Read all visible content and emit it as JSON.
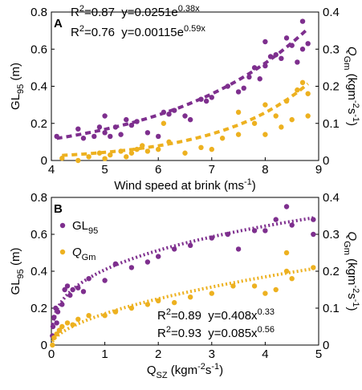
{
  "chart_data": [
    {
      "type": "scatter",
      "panel_label": "A",
      "fit_style": "dashed",
      "xlim": [
        4,
        9
      ],
      "xticks": [
        4,
        5,
        6,
        7,
        8,
        9
      ],
      "ylim": [
        0,
        0.8
      ],
      "yticks": [
        0,
        0.2,
        0.4,
        0.6,
        0.8
      ],
      "y2lim": [
        0,
        0.4
      ],
      "y2ticks": [
        0,
        0.1,
        0.2,
        0.3,
        0.4
      ],
      "xlabel": [
        {
          "text": "Wind speed at brink (ms"
        },
        {
          "text": "-1",
          "sup": true
        },
        {
          "text": ")"
        }
      ],
      "ylabel": [
        {
          "text": "GL"
        },
        {
          "text": "95",
          "sub": true
        },
        {
          "text": " (m)"
        }
      ],
      "y2label": [
        {
          "text": "Q",
          "italic": true
        },
        {
          "text": "Gm",
          "sub": true
        },
        {
          "text": " (kgm"
        },
        {
          "text": "-2",
          "sup": true
        },
        {
          "text": "s"
        },
        {
          "text": "-1",
          "sup": true
        },
        {
          "text": ")"
        }
      ],
      "series": [
        {
          "name": [
            {
              "text": "GL"
            },
            {
              "text": "95",
              "sub": true
            }
          ],
          "color": "#7E2F8E",
          "x": [
            4.1,
            4.5,
            4.6,
            4.8,
            4.9,
            5.0,
            5.0,
            5.1,
            5.2,
            5.3,
            5.4,
            5.5,
            5.6,
            5.8,
            6.0,
            6.1,
            6.2,
            6.3,
            6.5,
            6.6,
            6.8,
            6.9,
            7.0,
            7.3,
            7.5,
            7.6,
            7.7,
            7.8,
            7.9,
            8.0,
            8.0,
            8.1,
            8.2,
            8.3,
            8.4,
            8.5,
            8.6,
            8.7,
            8.7,
            8.8
          ],
          "values": [
            0.13,
            0.17,
            0.12,
            0.13,
            0.18,
            0.24,
            0.15,
            0.13,
            0.18,
            0.14,
            0.22,
            0.19,
            0.21,
            0.15,
            0.13,
            0.26,
            0.25,
            0.27,
            0.24,
            0.22,
            0.33,
            0.32,
            0.34,
            0.4,
            0.37,
            0.39,
            0.45,
            0.5,
            0.44,
            0.51,
            0.64,
            0.56,
            0.57,
            0.55,
            0.66,
            0.62,
            0.53,
            0.75,
            0.6,
            0.63
          ],
          "fit": {
            "model": "exp",
            "a": 0.0251,
            "b": 0.38
          },
          "fit_label": [
            {
              "text": "R"
            },
            {
              "text": "2",
              "sup": true
            },
            {
              "text": "=0.87  y=0.0251e"
            },
            {
              "text": "0.38x",
              "sup": true
            }
          ]
        },
        {
          "name": [
            {
              "text": "Q",
              "italic": true
            },
            {
              "text": "Gm",
              "sub": true
            }
          ],
          "color": "#EDB120",
          "axis": "y2",
          "x": [
            4.2,
            4.5,
            4.7,
            4.9,
            5.0,
            5.1,
            5.3,
            5.4,
            5.5,
            5.6,
            5.7,
            5.8,
            6.0,
            6.1,
            6.2,
            6.5,
            6.8,
            7.0,
            7.2,
            7.5,
            7.5,
            7.8,
            8.0,
            8.0,
            8.2,
            8.3,
            8.4,
            8.5,
            8.6,
            8.7,
            8.8,
            8.8
          ],
          "values": [
            0.006,
            0.0,
            0.01,
            0.02,
            0.005,
            0.015,
            0.025,
            0.01,
            0.02,
            0.03,
            0.04,
            0.025,
            0.03,
            0.1,
            0.05,
            0.02,
            0.035,
            0.03,
            0.06,
            0.07,
            0.13,
            0.1,
            0.15,
            0.07,
            0.12,
            0.09,
            0.16,
            0.11,
            0.19,
            0.21,
            0.18,
            0.12
          ],
          "fit": {
            "model": "exp",
            "a": 0.00115,
            "b": 0.59
          },
          "fit_label": [
            {
              "text": "R"
            },
            {
              "text": "2",
              "sup": true
            },
            {
              "text": "=0.76  y=0.00115e"
            },
            {
              "text": "0.59x",
              "sup": true
            }
          ]
        }
      ]
    },
    {
      "type": "scatter",
      "panel_label": "B",
      "fit_style": "dotted",
      "legend": "upper left",
      "xlim": [
        0,
        5
      ],
      "xticks": [
        0,
        1,
        2,
        3,
        4,
        5
      ],
      "ylim": [
        0,
        0.8
      ],
      "yticks": [
        0,
        0.2,
        0.4,
        0.6,
        0.8
      ],
      "y2lim": [
        0,
        0.4
      ],
      "y2ticks": [
        0,
        0.1,
        0.2,
        0.3,
        0.4
      ],
      "xlabel": [
        {
          "text": "Q"
        },
        {
          "text": "SZ",
          "sub": true
        },
        {
          "text": " (kgm"
        },
        {
          "text": "-2",
          "sup": true
        },
        {
          "text": "s"
        },
        {
          "text": "-1",
          "sup": true
        },
        {
          "text": ")"
        }
      ],
      "ylabel": [
        {
          "text": "GL"
        },
        {
          "text": "95",
          "sub": true
        },
        {
          "text": " (m)"
        }
      ],
      "y2label": [
        {
          "text": "Q",
          "italic": true
        },
        {
          "text": "Gm",
          "sub": true
        },
        {
          "text": " (kgm"
        },
        {
          "text": "-2",
          "sup": true
        },
        {
          "text": "s"
        },
        {
          "text": "-1",
          "sup": true
        },
        {
          "text": ")"
        }
      ],
      "series": [
        {
          "name": [
            {
              "text": "GL"
            },
            {
              "text": "95",
              "sub": true
            }
          ],
          "color": "#7E2F8E",
          "x": [
            0.02,
            0.03,
            0.05,
            0.08,
            0.1,
            0.12,
            0.15,
            0.2,
            0.25,
            0.3,
            0.35,
            0.4,
            0.5,
            0.6,
            0.7,
            1.0,
            1.2,
            1.5,
            1.8,
            2.0,
            2.3,
            2.6,
            3.0,
            3.3,
            3.5,
            3.8,
            4.0,
            4.2,
            4.4,
            4.5,
            4.9,
            4.9
          ],
          "values": [
            0.05,
            0.1,
            0.15,
            0.2,
            0.12,
            0.18,
            0.08,
            0.22,
            0.3,
            0.32,
            0.27,
            0.3,
            0.31,
            0.29,
            0.36,
            0.35,
            0.44,
            0.42,
            0.45,
            0.48,
            0.52,
            0.54,
            0.58,
            0.6,
            0.52,
            0.62,
            0.62,
            0.68,
            0.75,
            0.65,
            0.6,
            0.68
          ],
          "fit": {
            "model": "power",
            "a": 0.408,
            "b": 0.33
          },
          "fit_label": [
            {
              "text": "R"
            },
            {
              "text": "2",
              "sup": true
            },
            {
              "text": "=0.89  y=0.408x"
            },
            {
              "text": "0.33",
              "sup": true
            }
          ]
        },
        {
          "name": [
            {
              "text": "Q",
              "italic": true
            },
            {
              "text": "Gm",
              "sub": true
            }
          ],
          "color": "#EDB120",
          "axis": "y2",
          "x": [
            0.02,
            0.05,
            0.1,
            0.15,
            0.2,
            0.3,
            0.4,
            0.5,
            0.7,
            1.0,
            1.2,
            1.5,
            1.8,
            2.0,
            2.3,
            2.6,
            3.0,
            3.4,
            3.8,
            4.0,
            4.2,
            4.4,
            4.4,
            4.5,
            4.9
          ],
          "values": [
            0.0,
            0.02,
            0.03,
            0.04,
            0.05,
            0.06,
            0.055,
            0.07,
            0.08,
            0.08,
            0.09,
            0.1,
            0.11,
            0.12,
            0.115,
            0.13,
            0.14,
            0.16,
            0.16,
            0.14,
            0.15,
            0.25,
            0.2,
            0.18,
            0.21
          ],
          "fit": {
            "model": "power",
            "a": 0.085,
            "b": 0.56
          },
          "fit_label": [
            {
              "text": "R"
            },
            {
              "text": "2",
              "sup": true
            },
            {
              "text": "=0.93  y=0.085x"
            },
            {
              "text": "0.56",
              "sup": true
            }
          ]
        }
      ]
    }
  ]
}
